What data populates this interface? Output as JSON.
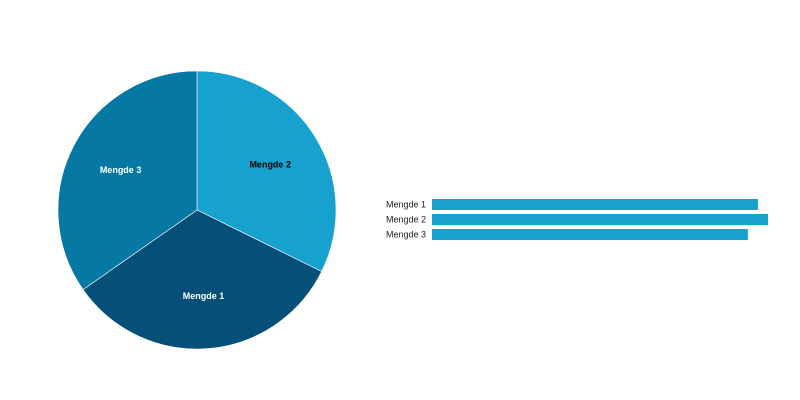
{
  "colors": {
    "slice_1": "#045079",
    "slice_2": "#17a1cf",
    "slice_3": "#0578a4",
    "bar": "#17a1cf",
    "label_dark": "#000000",
    "label_light": "#ffffff"
  },
  "chart_data": [
    {
      "type": "pie",
      "title": "",
      "start": "top",
      "direction": "clockwise",
      "slices": [
        {
          "label": "Mengde 2",
          "value": 32.3,
          "color": "#17a1cf",
          "label_color": "#000000"
        },
        {
          "label": "Mengde 1",
          "value": 33.0,
          "color": "#045079",
          "label_color": "#ffffff"
        },
        {
          "label": "Mengde 3",
          "value": 34.7,
          "color": "#0578a4",
          "label_color": "#ffffff"
        }
      ]
    },
    {
      "type": "bar",
      "orientation": "horizontal",
      "title": "",
      "xlabel": "",
      "ylabel": "",
      "categories": [
        "Mengde 1",
        "Mengde 2",
        "Mengde 3"
      ],
      "values": [
        97,
        100,
        94
      ],
      "xlim": [
        0,
        100
      ],
      "grid": false
    }
  ]
}
